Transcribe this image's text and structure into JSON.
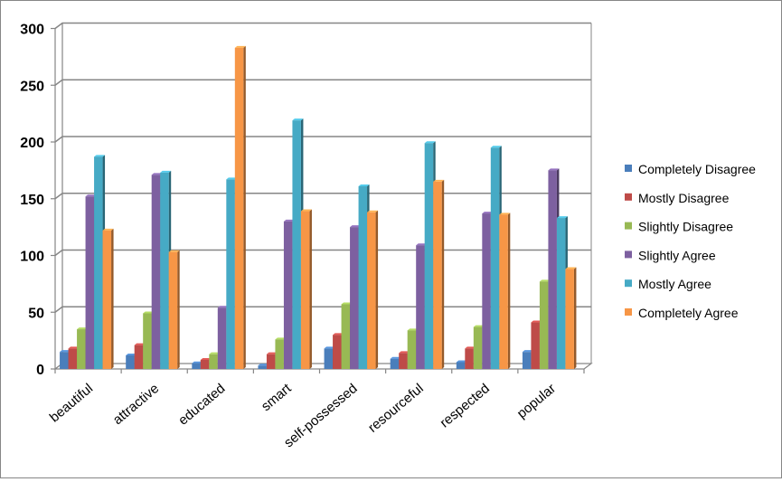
{
  "chart_data": {
    "type": "bar",
    "categories": [
      "beautiful",
      "attractive",
      "educated",
      "smart",
      "self-possessed",
      "resourceful",
      "respected",
      "popular"
    ],
    "series": [
      {
        "name": "Completely Disagree",
        "color": "#4a7ebb",
        "values": [
          15,
          12,
          5,
          3,
          18,
          9,
          6,
          15
        ]
      },
      {
        "name": "Mostly Disagree",
        "color": "#be4b48",
        "values": [
          18,
          21,
          8,
          13,
          30,
          14,
          18,
          41
        ]
      },
      {
        "name": "Slightly Disagree",
        "color": "#98b954",
        "values": [
          35,
          49,
          13,
          26,
          57,
          34,
          37,
          77
        ]
      },
      {
        "name": "Slightly Agree",
        "color": "#7d60a0",
        "values": [
          152,
          171,
          54,
          130,
          125,
          109,
          137,
          175
        ]
      },
      {
        "name": "Mostly Agree",
        "color": "#46aac5",
        "values": [
          187,
          173,
          167,
          219,
          161,
          199,
          195,
          133
        ]
      },
      {
        "name": "Completely Agree",
        "color": "#f79646",
        "values": [
          122,
          103,
          283,
          139,
          138,
          165,
          136,
          88
        ]
      }
    ],
    "yticks": [
      "0",
      "50",
      "100",
      "150",
      "200",
      "250",
      "300"
    ],
    "ylim": [
      0,
      300
    ],
    "title": "",
    "xlabel": "",
    "ylabel": "",
    "grid": true,
    "legend": "right"
  }
}
